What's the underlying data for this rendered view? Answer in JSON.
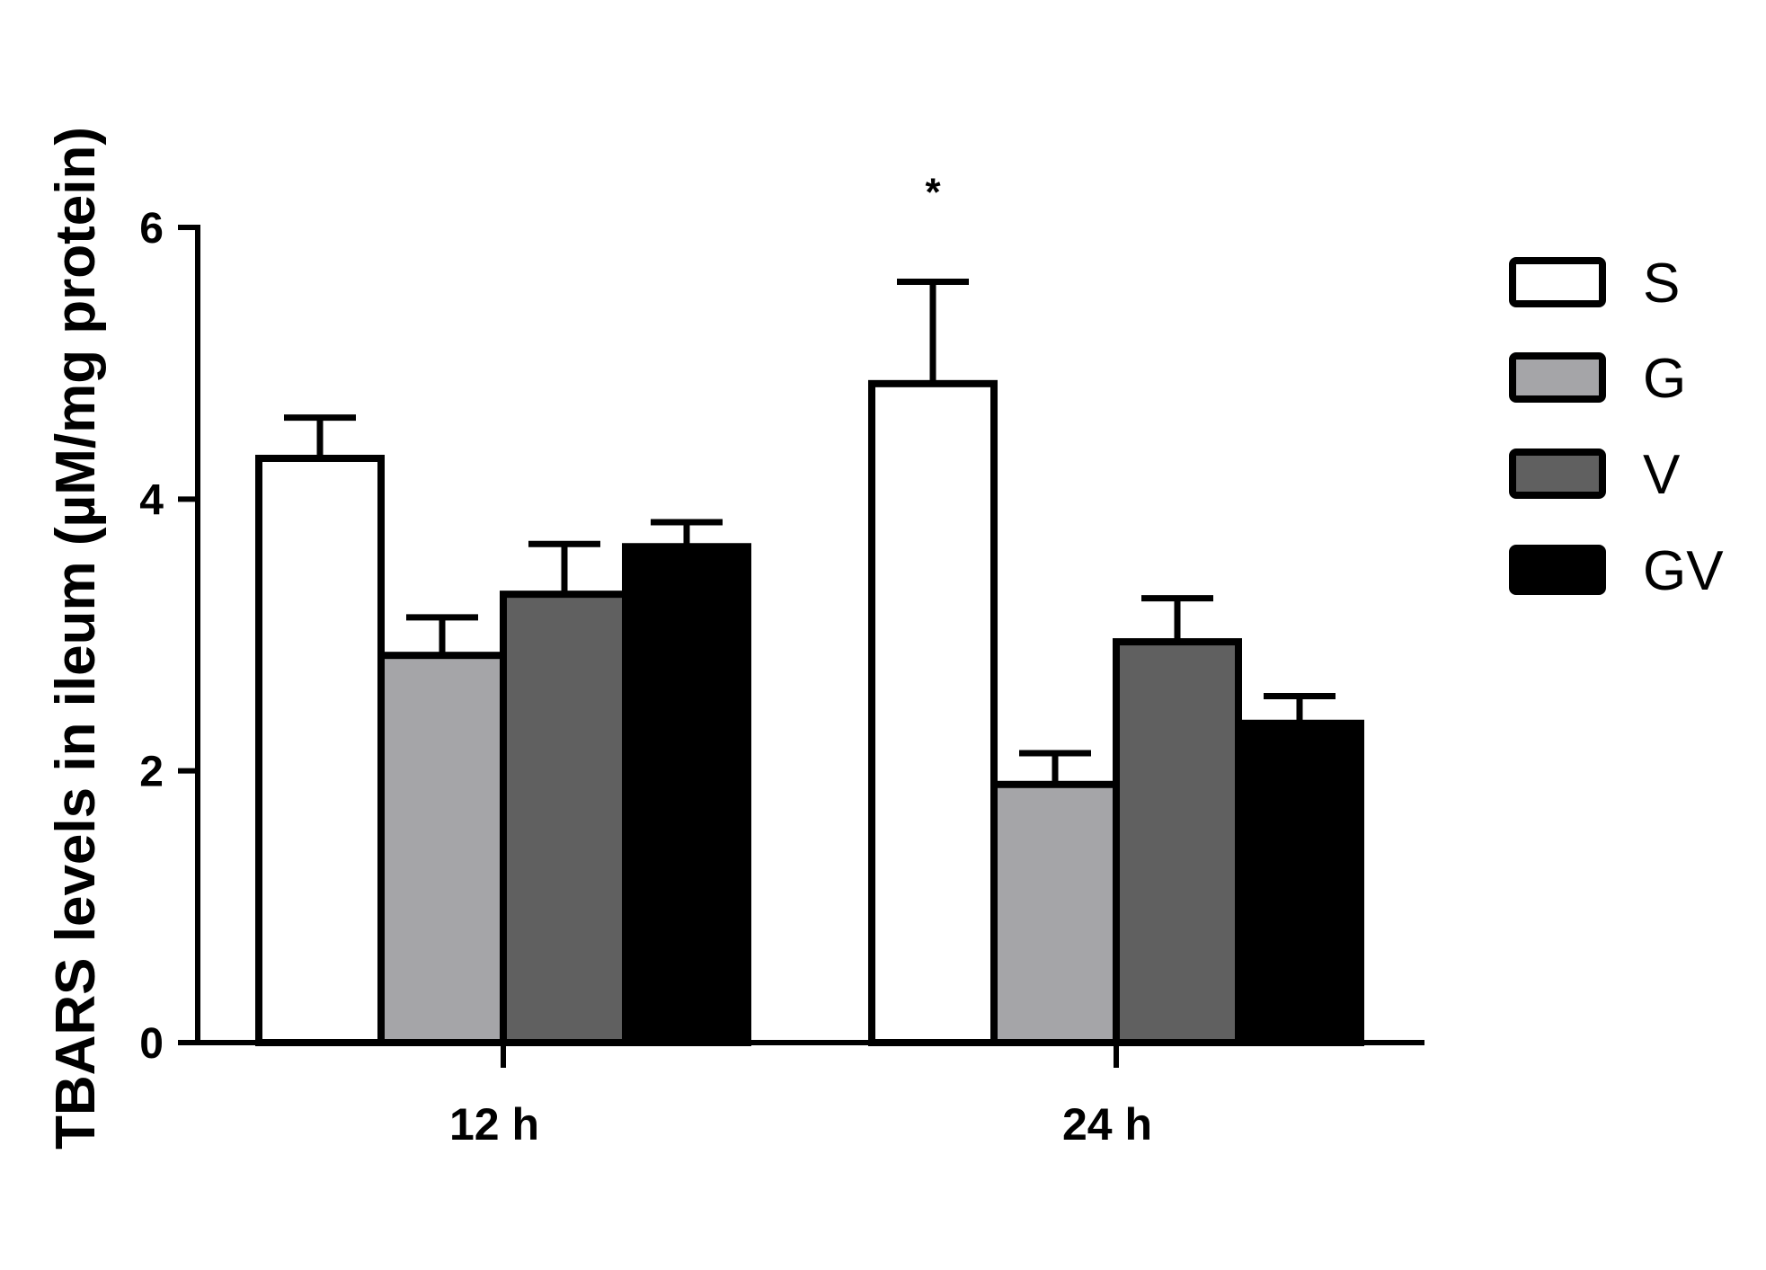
{
  "chart_data": {
    "type": "bar",
    "ylabel": "TBARS levels in ileum (µM/mg protein)",
    "xlabel": "",
    "categories": [
      "12 h",
      "24 h"
    ],
    "ylim": [
      0,
      6
    ],
    "yticks": [
      0,
      2,
      4,
      6
    ],
    "yticklabels": [
      "0",
      "2",
      "4",
      "6"
    ],
    "grid": false,
    "legend_position": "right",
    "series": [
      {
        "name": "S",
        "values": [
          4.3,
          4.85
        ],
        "errors": [
          0.3,
          0.75
        ],
        "color": "#ffffff"
      },
      {
        "name": "G",
        "values": [
          2.85,
          1.9
        ],
        "errors": [
          0.28,
          0.23
        ],
        "color": "#a5a5a8"
      },
      {
        "name": "V",
        "values": [
          3.3,
          2.95
        ],
        "errors": [
          0.37,
          0.32
        ],
        "color": "#606060"
      },
      {
        "name": "GV",
        "values": [
          3.65,
          2.35
        ],
        "errors": [
          0.18,
          0.2
        ],
        "color": "#000000"
      }
    ],
    "annotations": [
      {
        "text": "*",
        "category": "24 h",
        "series": "S"
      }
    ]
  }
}
